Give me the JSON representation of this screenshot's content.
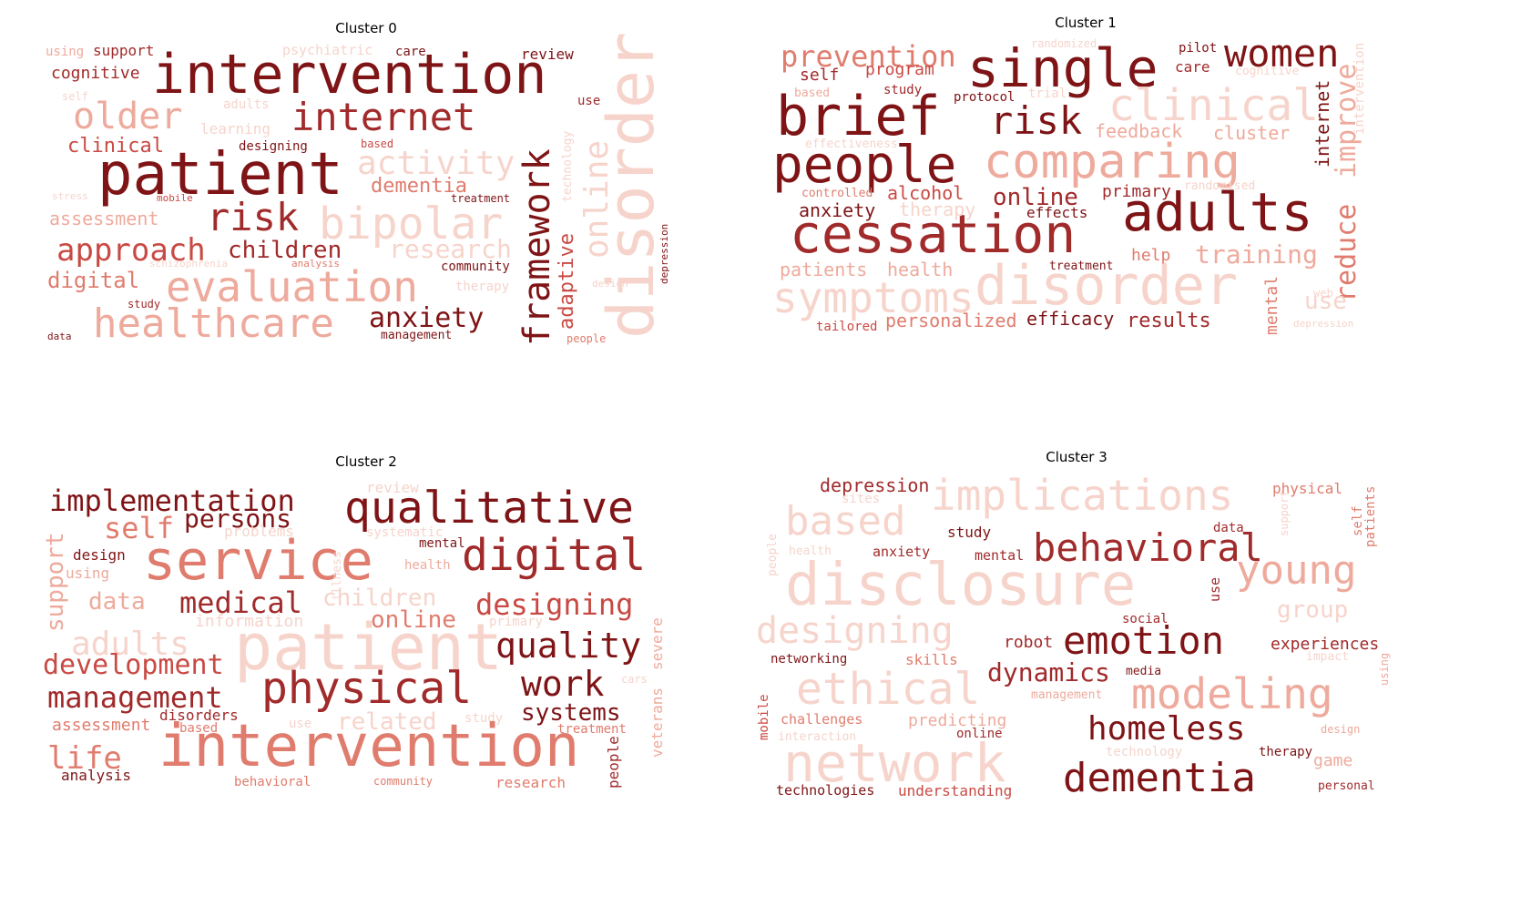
{
  "palette": {
    "c1": "#7f1416",
    "c2": "#a12a2b",
    "c3": "#c94a44",
    "c4": "#e07c6d",
    "c5": "#eeaa9c",
    "c6": "#f6d4cb"
  },
  "panels": [
    {
      "title": "Cluster 0",
      "words": [
        {
          "text": "intervention",
          "c": "c1"
        },
        {
          "text": "patient",
          "c": "c1"
        },
        {
          "text": "internet",
          "c": "c2"
        },
        {
          "text": "older",
          "c": "c5"
        },
        {
          "text": "risk",
          "c": "c2"
        },
        {
          "text": "approach",
          "c": "c3"
        },
        {
          "text": "evaluation",
          "c": "c5"
        },
        {
          "text": "healthcare",
          "c": "c5"
        },
        {
          "text": "framework",
          "c": "c1"
        },
        {
          "text": "disorder",
          "c": "c6"
        },
        {
          "text": "bipolar",
          "c": "c6"
        },
        {
          "text": "activity",
          "c": "c6"
        },
        {
          "text": "anxiety",
          "c": "c1"
        },
        {
          "text": "children",
          "c": "c2"
        },
        {
          "text": "dementia",
          "c": "c4"
        },
        {
          "text": "research",
          "c": "c6"
        },
        {
          "text": "digital",
          "c": "c4"
        },
        {
          "text": "assessment",
          "c": "c5"
        },
        {
          "text": "clinical",
          "c": "c3"
        },
        {
          "text": "cognitive",
          "c": "c2"
        },
        {
          "text": "online",
          "c": "c6"
        },
        {
          "text": "adaptive",
          "c": "c3"
        },
        {
          "text": "support",
          "c": "c2"
        },
        {
          "text": "review",
          "c": "c1"
        },
        {
          "text": "psychiatric",
          "c": "c6"
        },
        {
          "text": "care",
          "c": "c1"
        },
        {
          "text": "using",
          "c": "c5"
        },
        {
          "text": "self",
          "c": "c6"
        },
        {
          "text": "adults",
          "c": "c6"
        },
        {
          "text": "learning",
          "c": "c6"
        },
        {
          "text": "designing",
          "c": "c1"
        },
        {
          "text": "based",
          "c": "c3"
        },
        {
          "text": "use",
          "c": "c2"
        },
        {
          "text": "technology",
          "c": "c6"
        },
        {
          "text": "treatment",
          "c": "c1"
        },
        {
          "text": "mobile",
          "c": "c3"
        },
        {
          "text": "stress",
          "c": "c6"
        },
        {
          "text": "schizophrenia",
          "c": "c6"
        },
        {
          "text": "analysis",
          "c": "c4"
        },
        {
          "text": "community",
          "c": "c1"
        },
        {
          "text": "therapy",
          "c": "c6"
        },
        {
          "text": "design",
          "c": "c6"
        },
        {
          "text": "depression",
          "c": "c1"
        },
        {
          "text": "study",
          "c": "c2"
        },
        {
          "text": "data",
          "c": "c1"
        },
        {
          "text": "management",
          "c": "c1"
        },
        {
          "text": "people",
          "c": "c4"
        }
      ]
    },
    {
      "title": "Cluster 1",
      "words": [
        {
          "text": "single",
          "c": "c1"
        },
        {
          "text": "brief",
          "c": "c1"
        },
        {
          "text": "women",
          "c": "c1"
        },
        {
          "text": "prevention",
          "c": "c4"
        },
        {
          "text": "risk",
          "c": "c1"
        },
        {
          "text": "clinical",
          "c": "c6"
        },
        {
          "text": "people",
          "c": "c1"
        },
        {
          "text": "comparing",
          "c": "c5"
        },
        {
          "text": "adults",
          "c": "c1"
        },
        {
          "text": "cessation",
          "c": "c2"
        },
        {
          "text": "symptoms",
          "c": "c6"
        },
        {
          "text": "disorder",
          "c": "c6"
        },
        {
          "text": "self",
          "c": "c2"
        },
        {
          "text": "program",
          "c": "c3"
        },
        {
          "text": "randomized",
          "c": "c6"
        },
        {
          "text": "pilot",
          "c": "c1"
        },
        {
          "text": "care",
          "c": "c2"
        },
        {
          "text": "cognitive",
          "c": "c6"
        },
        {
          "text": "based",
          "c": "c5"
        },
        {
          "text": "study",
          "c": "c2"
        },
        {
          "text": "protocol",
          "c": "c1"
        },
        {
          "text": "trial",
          "c": "c6"
        },
        {
          "text": "feedback",
          "c": "c5"
        },
        {
          "text": "cluster",
          "c": "c5"
        },
        {
          "text": "internet",
          "c": "c1"
        },
        {
          "text": "improve",
          "c": "c5"
        },
        {
          "text": "intervention",
          "c": "c6"
        },
        {
          "text": "effectiveness",
          "c": "c6"
        },
        {
          "text": "controlled",
          "c": "c4"
        },
        {
          "text": "alcohol",
          "c": "c3"
        },
        {
          "text": "online",
          "c": "c2"
        },
        {
          "text": "primary",
          "c": "c2"
        },
        {
          "text": "randomised",
          "c": "c6"
        },
        {
          "text": "anxiety",
          "c": "c1"
        },
        {
          "text": "therapy",
          "c": "c6"
        },
        {
          "text": "effects",
          "c": "c1"
        },
        {
          "text": "reduce",
          "c": "c4"
        },
        {
          "text": "help",
          "c": "c4"
        },
        {
          "text": "training",
          "c": "c5"
        },
        {
          "text": "patients",
          "c": "c5"
        },
        {
          "text": "health",
          "c": "c5"
        },
        {
          "text": "treatment",
          "c": "c1"
        },
        {
          "text": "web",
          "c": "c6"
        },
        {
          "text": "use",
          "c": "c6"
        },
        {
          "text": "mental",
          "c": "c4"
        },
        {
          "text": "tailored",
          "c": "c3"
        },
        {
          "text": "personalized",
          "c": "c4"
        },
        {
          "text": "efficacy",
          "c": "c1"
        },
        {
          "text": "results",
          "c": "c2"
        },
        {
          "text": "depression",
          "c": "c6"
        }
      ]
    },
    {
      "title": "Cluster 2",
      "words": [
        {
          "text": "implementation",
          "c": "c1"
        },
        {
          "text": "qualitative",
          "c": "c1"
        },
        {
          "text": "self",
          "c": "c4"
        },
        {
          "text": "persons",
          "c": "c1"
        },
        {
          "text": "service",
          "c": "c4"
        },
        {
          "text": "digital",
          "c": "c2"
        },
        {
          "text": "review",
          "c": "c6"
        },
        {
          "text": "problems",
          "c": "c6"
        },
        {
          "text": "illness",
          "c": "c6"
        },
        {
          "text": "systematic",
          "c": "c6"
        },
        {
          "text": "mental",
          "c": "c1"
        },
        {
          "text": "health",
          "c": "c5"
        },
        {
          "text": "design",
          "c": "c1"
        },
        {
          "text": "using",
          "c": "c5"
        },
        {
          "text": "support",
          "c": "c5"
        },
        {
          "text": "data",
          "c": "c5"
        },
        {
          "text": "medical",
          "c": "c2"
        },
        {
          "text": "children",
          "c": "c6"
        },
        {
          "text": "designing",
          "c": "c3"
        },
        {
          "text": "information",
          "c": "c6"
        },
        {
          "text": "online",
          "c": "c4"
        },
        {
          "text": "primary",
          "c": "c6"
        },
        {
          "text": "adults",
          "c": "c6"
        },
        {
          "text": "patient",
          "c": "c6"
        },
        {
          "text": "quality",
          "c": "c1"
        },
        {
          "text": "development",
          "c": "c3"
        },
        {
          "text": "work",
          "c": "c1"
        },
        {
          "text": "severe",
          "c": "c5"
        },
        {
          "text": "management",
          "c": "c2"
        },
        {
          "text": "physical",
          "c": "c2"
        },
        {
          "text": "cars",
          "c": "c6"
        },
        {
          "text": "systems",
          "c": "c1"
        },
        {
          "text": "assessment",
          "c": "c4"
        },
        {
          "text": "disorders",
          "c": "c2"
        },
        {
          "text": "based",
          "c": "c4"
        },
        {
          "text": "use",
          "c": "c6"
        },
        {
          "text": "related",
          "c": "c6"
        },
        {
          "text": "study",
          "c": "c6"
        },
        {
          "text": "treatment",
          "c": "c4"
        },
        {
          "text": "veterans",
          "c": "c5"
        },
        {
          "text": "life",
          "c": "c4"
        },
        {
          "text": "intervention",
          "c": "c4"
        },
        {
          "text": "people",
          "c": "c2"
        },
        {
          "text": "analysis",
          "c": "c1"
        },
        {
          "text": "behavioral",
          "c": "c4"
        },
        {
          "text": "community",
          "c": "c4"
        },
        {
          "text": "research",
          "c": "c4"
        }
      ]
    },
    {
      "title": "Cluster 3",
      "words": [
        {
          "text": "depression",
          "c": "c2"
        },
        {
          "text": "sites",
          "c": "c6"
        },
        {
          "text": "implications",
          "c": "c6"
        },
        {
          "text": "physical",
          "c": "c4"
        },
        {
          "text": "based",
          "c": "c6"
        },
        {
          "text": "study",
          "c": "c1"
        },
        {
          "text": "behavioral",
          "c": "c2"
        },
        {
          "text": "data",
          "c": "c2"
        },
        {
          "text": "support",
          "c": "c6"
        },
        {
          "text": "self",
          "c": "c4"
        },
        {
          "text": "patients",
          "c": "c4"
        },
        {
          "text": "health",
          "c": "c6"
        },
        {
          "text": "anxiety",
          "c": "c2"
        },
        {
          "text": "mental",
          "c": "c2"
        },
        {
          "text": "young",
          "c": "c5"
        },
        {
          "text": "people",
          "c": "c6"
        },
        {
          "text": "disclosure",
          "c": "c6"
        },
        {
          "text": "use",
          "c": "c2"
        },
        {
          "text": "group",
          "c": "c6"
        },
        {
          "text": "designing",
          "c": "c6"
        },
        {
          "text": "social",
          "c": "c2"
        },
        {
          "text": "robot",
          "c": "c2"
        },
        {
          "text": "emotion",
          "c": "c1"
        },
        {
          "text": "experiences",
          "c": "c2"
        },
        {
          "text": "impact",
          "c": "c6"
        },
        {
          "text": "networking",
          "c": "c1"
        },
        {
          "text": "skills",
          "c": "c4"
        },
        {
          "text": "dynamics",
          "c": "c2"
        },
        {
          "text": "media",
          "c": "c1"
        },
        {
          "text": "ethical",
          "c": "c6"
        },
        {
          "text": "modeling",
          "c": "c5"
        },
        {
          "text": "using",
          "c": "c5"
        },
        {
          "text": "management",
          "c": "c5"
        },
        {
          "text": "mobile",
          "c": "c3"
        },
        {
          "text": "challenges",
          "c": "c4"
        },
        {
          "text": "predicting",
          "c": "c5"
        },
        {
          "text": "homeless",
          "c": "c1"
        },
        {
          "text": "interaction",
          "c": "c6"
        },
        {
          "text": "online",
          "c": "c2"
        },
        {
          "text": "design",
          "c": "c5"
        },
        {
          "text": "network",
          "c": "c6"
        },
        {
          "text": "technology",
          "c": "c6"
        },
        {
          "text": "therapy",
          "c": "c1"
        },
        {
          "text": "game",
          "c": "c5"
        },
        {
          "text": "dementia",
          "c": "c1"
        },
        {
          "text": "technologies",
          "c": "c1"
        },
        {
          "text": "understanding",
          "c": "c3"
        },
        {
          "text": "personal",
          "c": "c2"
        }
      ]
    }
  ]
}
